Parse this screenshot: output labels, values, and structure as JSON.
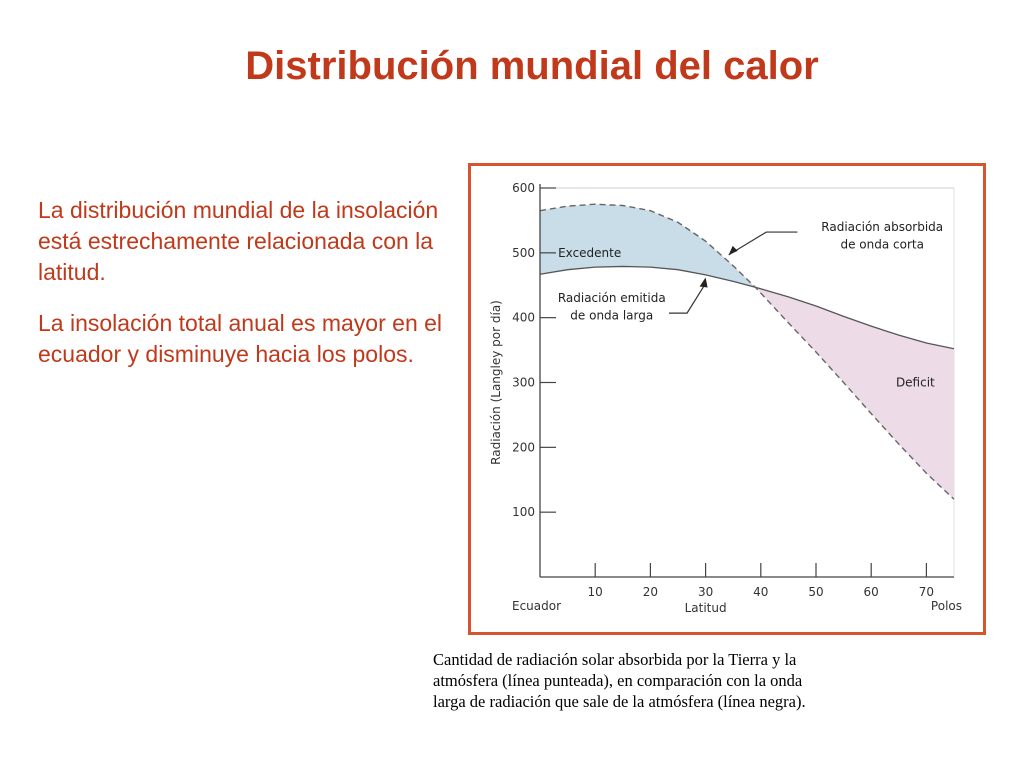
{
  "slide": {
    "title": "Distribución mundial del calor",
    "paragraphs": [
      "La distribución mundial de la insolación está estrechamente relacionada con la latitud.",
      "La insolación total anual es mayor en el ecuador y disminuye hacia los polos."
    ]
  },
  "caption": {
    "lines": [
      "Cantidad de radiación solar absorbida por la Tierra y la",
      "atmósfera (línea punteada),  en comparación con la onda",
      "larga de radiación que sale de la atmósfera (línea negra)."
    ]
  },
  "chart_data": {
    "type": "line",
    "ylabel": "Radiación (Langley por día)",
    "xlabel": "Latitud",
    "x_left_label": "Ecuador",
    "x_right_label": "Polos",
    "ylim": [
      0,
      600
    ],
    "xlim": [
      0,
      75
    ],
    "y_ticks": [
      100,
      200,
      300,
      400,
      500,
      600
    ],
    "x_ticks": [
      10,
      20,
      30,
      40,
      50,
      60,
      70
    ],
    "y_tick_labels": [
      "100",
      "200",
      "300",
      "400",
      "500",
      "600"
    ],
    "x_tick_labels": [
      "10",
      "20",
      "30",
      "40",
      "50",
      "60",
      "70"
    ],
    "series": [
      {
        "name": "Radiación absorbida de onda corta",
        "style": "dashed",
        "x": [
          0,
          5,
          10,
          15,
          20,
          25,
          30,
          35,
          39,
          45,
          50,
          55,
          60,
          65,
          70,
          75
        ],
        "y": [
          565,
          572,
          575,
          573,
          565,
          547,
          518,
          480,
          447,
          392,
          347,
          300,
          252,
          205,
          160,
          120
        ]
      },
      {
        "name": "Radiación emitida de onda larga",
        "style": "solid",
        "x": [
          0,
          5,
          10,
          15,
          20,
          25,
          30,
          35,
          39,
          45,
          50,
          55,
          60,
          65,
          70,
          75
        ],
        "y": [
          467,
          474,
          478,
          479,
          478,
          474,
          466,
          456,
          447,
          432,
          418,
          402,
          387,
          373,
          361,
          352
        ]
      }
    ],
    "regions": [
      {
        "label": "Excedente",
        "color": "#C9DDE8"
      },
      {
        "label": "Deficit",
        "color": "#EDDCE8"
      }
    ],
    "annotations": {
      "absorbed": [
        "Radiación absorbida",
        "de onda corta"
      ],
      "emitted": [
        "Radiación emitida",
        "de onda larga"
      ]
    }
  }
}
